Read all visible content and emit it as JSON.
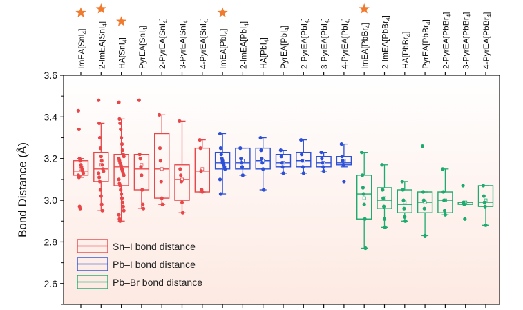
{
  "chart_data": {
    "type": "box",
    "ylabel": "Bond Distance (Å)",
    "ylim": [
      2.5,
      3.6
    ],
    "yticks": [
      "2.6",
      "2.8",
      "3.0",
      "3.2",
      "3.4",
      "3.6"
    ],
    "categories": [
      {
        "main": "ImEA[SnI",
        "sub": "4",
        "tail": "]",
        "starred": true
      },
      {
        "main": "2-ImEA[SnI",
        "sub": "4",
        "tail": "]",
        "starred": true
      },
      {
        "main": "HA[SnI",
        "sub": "4",
        "tail": "]",
        "starred": true
      },
      {
        "main": "PyrEA[SnI",
        "sub": "4",
        "tail": "]",
        "starred": false
      },
      {
        "main": "2-PyrEA[SnI",
        "sub": "4",
        "tail": "]",
        "starred": false
      },
      {
        "main": "3-PyrEA[SnI",
        "sub": "4",
        "tail": "]",
        "starred": false
      },
      {
        "main": "4-PyrEA[SnI",
        "sub": "4",
        "tail": "]",
        "starred": false
      },
      {
        "main": "ImEA[PbI",
        "sub": "4",
        "tail": "]",
        "starred": true
      },
      {
        "main": "2-ImEA[PbI",
        "sub": "4",
        "tail": "]",
        "starred": false
      },
      {
        "main": "HA[PbI",
        "sub": "4",
        "tail": "]",
        "starred": false
      },
      {
        "main": "PyrEA[PbI",
        "sub": "4",
        "tail": "]",
        "starred": false
      },
      {
        "main": "2-PyrEA[PbI",
        "sub": "4",
        "tail": "]",
        "starred": false
      },
      {
        "main": "3-PyrEA[PbI",
        "sub": "4",
        "tail": "]",
        "starred": false
      },
      {
        "main": "4-PyrEA[PbI",
        "sub": "4",
        "tail": "]",
        "starred": false
      },
      {
        "main": "ImEA[PbBr",
        "sub": "4",
        "tail": "]",
        "starred": true
      },
      {
        "main": "2-ImEA[PbBr",
        "sub": "4",
        "tail": "]",
        "starred": false
      },
      {
        "main": "HA[PbBr",
        "sub": "4",
        "tail": "]",
        "starred": false
      },
      {
        "main": "PyrEA[PbBr",
        "sub": "4",
        "tail": "]",
        "starred": false
      },
      {
        "main": "2-PyrEA[PbBr",
        "sub": "4",
        "tail": "]",
        "starred": false
      },
      {
        "main": "3-PyrEA[PbBr",
        "sub": "4",
        "tail": "]",
        "starred": false
      },
      {
        "main": "4-PyrEA[PbBr",
        "sub": "4",
        "tail": "]",
        "starred": false
      }
    ],
    "series": [
      {
        "name": "Sn–I bond distance",
        "color": "#e8474a",
        "indices": [
          0,
          1,
          2,
          3,
          4,
          5,
          6
        ]
      },
      {
        "name": "Pb–I bond distance",
        "color": "#2b4fd6",
        "indices": [
          7,
          8,
          9,
          10,
          11,
          12,
          13
        ]
      },
      {
        "name": "Pb–Br bond distance",
        "color": "#1daa6e",
        "indices": [
          14,
          15,
          16,
          17,
          18,
          19,
          20
        ]
      }
    ],
    "boxes": [
      {
        "q1": 3.12,
        "median": 3.14,
        "q3": 3.19,
        "mean": 3.15,
        "wlo": 3.11,
        "whi": 3.2,
        "points": [
          3.43,
          3.34,
          3.2,
          3.19,
          3.17,
          3.16,
          3.15,
          3.14,
          3.13,
          3.12,
          3.11,
          2.97,
          2.96
        ]
      },
      {
        "q1": 3.09,
        "median": 3.15,
        "q3": 3.23,
        "mean": 3.17,
        "wlo": 2.95,
        "whi": 3.37,
        "points": [
          3.48,
          3.37,
          3.3,
          3.25,
          3.21,
          3.19,
          3.17,
          3.15,
          3.14,
          3.13,
          3.11,
          3.09,
          3.05,
          3.02,
          2.98,
          2.95
        ]
      },
      {
        "q1": 3.07,
        "median": 3.16,
        "q3": 3.22,
        "mean": 3.16,
        "wlo": 2.9,
        "whi": 3.39,
        "points": [
          3.47,
          3.39,
          3.37,
          3.34,
          3.3,
          3.27,
          3.24,
          3.22,
          3.21,
          3.2,
          3.19,
          3.18,
          3.17,
          3.16,
          3.15,
          3.14,
          3.13,
          3.12,
          3.1,
          3.08,
          3.07,
          3.05,
          3.03,
          3.01,
          2.99,
          2.97,
          2.95,
          2.93,
          2.91,
          2.9
        ]
      },
      {
        "q1": 3.05,
        "median": 3.15,
        "q3": 3.22,
        "mean": 3.17,
        "wlo": 2.96,
        "whi": 3.22,
        "points": [
          3.48,
          3.22,
          3.2,
          3.16,
          3.12,
          3.05,
          2.98,
          2.96
        ]
      },
      {
        "q1": 3.01,
        "median": 3.15,
        "q3": 3.32,
        "mean": 3.15,
        "wlo": 2.98,
        "whi": 3.41,
        "points": [
          3.41,
          3.25,
          3.19,
          3.09,
          3.01,
          2.98
        ]
      },
      {
        "q1": 3.0,
        "median": 3.1,
        "q3": 3.17,
        "mean": 3.1,
        "wlo": 2.94,
        "whi": 3.38,
        "points": [
          3.38,
          3.15,
          3.12,
          3.09,
          2.99,
          2.94
        ]
      },
      {
        "q1": 3.04,
        "median": 3.14,
        "q3": 3.25,
        "mean": 3.15,
        "wlo": 3.04,
        "whi": 3.29,
        "points": [
          3.29,
          3.25,
          3.14,
          3.05,
          3.04
        ]
      },
      {
        "q1": 3.15,
        "median": 3.18,
        "q3": 3.23,
        "mean": 3.18,
        "wlo": 3.03,
        "whi": 3.32,
        "points": [
          3.32,
          3.25,
          3.22,
          3.2,
          3.19,
          3.18,
          3.17,
          3.16,
          3.15,
          3.1,
          3.03
        ]
      },
      {
        "q1": 3.15,
        "median": 3.18,
        "q3": 3.25,
        "mean": 3.19,
        "wlo": 3.12,
        "whi": 3.25,
        "points": [
          3.25,
          3.2,
          3.18,
          3.16,
          3.12
        ]
      },
      {
        "q1": 3.15,
        "median": 3.19,
        "q3": 3.25,
        "mean": 3.19,
        "wlo": 3.05,
        "whi": 3.3,
        "points": [
          3.3,
          3.24,
          3.2,
          3.18,
          3.15,
          3.05
        ]
      },
      {
        "q1": 3.16,
        "median": 3.18,
        "q3": 3.22,
        "mean": 3.18,
        "wlo": 3.13,
        "whi": 3.24,
        "points": [
          3.24,
          3.21,
          3.18,
          3.16,
          3.13
        ]
      },
      {
        "q1": 3.16,
        "median": 3.19,
        "q3": 3.23,
        "mean": 3.19,
        "wlo": 3.13,
        "whi": 3.29,
        "points": [
          3.29,
          3.22,
          3.19,
          3.16,
          3.13
        ]
      },
      {
        "q1": 3.16,
        "median": 3.18,
        "q3": 3.21,
        "mean": 3.18,
        "wlo": 3.14,
        "whi": 3.23,
        "points": [
          3.23,
          3.2,
          3.18,
          3.16,
          3.14
        ]
      },
      {
        "q1": 3.17,
        "median": 3.18,
        "q3": 3.21,
        "mean": 3.19,
        "wlo": 3.16,
        "whi": 3.27,
        "points": [
          3.27,
          3.21,
          3.19,
          3.17,
          3.09
        ]
      },
      {
        "q1": 2.91,
        "median": 3.03,
        "q3": 3.12,
        "mean": 3.01,
        "wlo": 2.77,
        "whi": 3.23,
        "points": [
          3.23,
          3.12,
          3.06,
          3.03,
          2.98,
          2.91,
          2.77
        ]
      },
      {
        "q1": 2.96,
        "median": 3.0,
        "q3": 3.06,
        "mean": 3.01,
        "wlo": 2.87,
        "whi": 3.17,
        "points": [
          3.17,
          3.05,
          3.01,
          2.97,
          2.91,
          2.87
        ]
      },
      {
        "q1": 2.94,
        "median": 2.98,
        "q3": 3.05,
        "mean": 2.99,
        "wlo": 2.9,
        "whi": 3.09,
        "points": [
          3.09,
          3.05,
          3.0,
          2.96,
          2.92,
          2.9
        ]
      },
      {
        "q1": 2.94,
        "median": 2.99,
        "q3": 3.04,
        "mean": 2.99,
        "wlo": 2.83,
        "whi": 3.04,
        "points": [
          3.26,
          3.04,
          3.0,
          2.96,
          2.83
        ]
      },
      {
        "q1": 2.94,
        "median": 3.0,
        "q3": 3.04,
        "mean": 3.0,
        "wlo": 2.93,
        "whi": 3.15,
        "points": [
          3.15,
          3.04,
          3.0,
          2.95,
          2.93
        ]
      },
      {
        "q1": 2.98,
        "median": 2.99,
        "q3": 2.99,
        "mean": 2.99,
        "wlo": 2.98,
        "whi": 2.99,
        "points": [
          3.07,
          2.99,
          2.98,
          2.91
        ]
      },
      {
        "q1": 2.97,
        "median": 2.99,
        "q3": 3.07,
        "mean": 3.0,
        "wlo": 2.88,
        "whi": 3.07,
        "points": [
          3.07,
          3.02,
          2.99,
          2.97,
          2.88
        ]
      }
    ],
    "legend_position": "bottom-left",
    "star_color": "#f07a2e",
    "background_gradient": [
      "#ffffff",
      "#fde9e2"
    ]
  }
}
